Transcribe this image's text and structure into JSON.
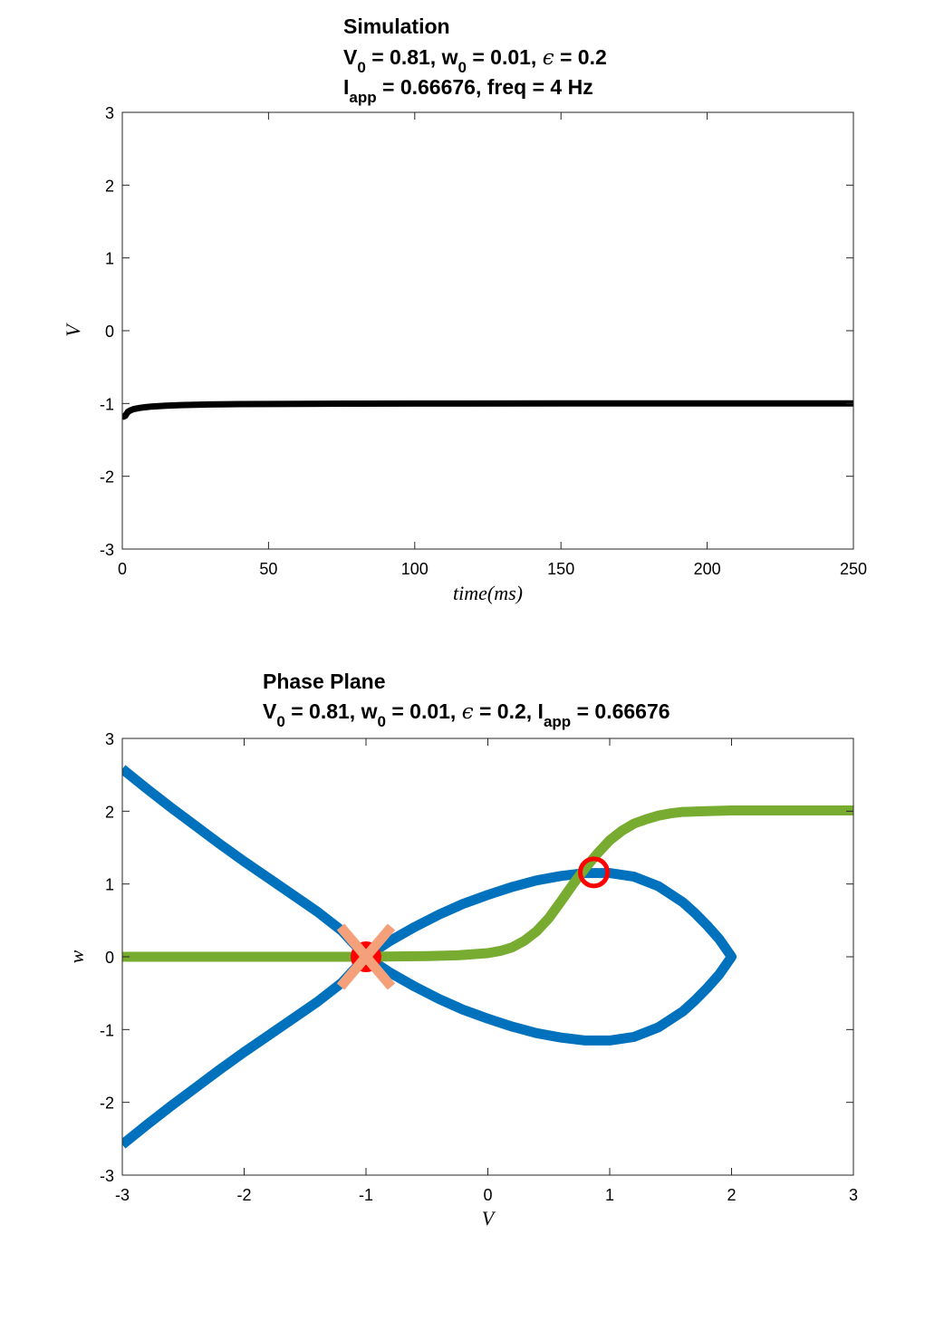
{
  "chart_data": [
    {
      "type": "line",
      "title_lines": [
        [
          {
            "t": "Simulation"
          }
        ],
        [
          {
            "t": "V"
          },
          {
            "t": "0",
            "sub": true
          },
          {
            "t": " = 0.81, w"
          },
          {
            "t": "0",
            "sub": true
          },
          {
            "t": " = 0.01, "
          },
          {
            "t": "ϵ",
            "math": true
          },
          {
            "t": " = 0.2"
          }
        ],
        [
          {
            "t": "I"
          },
          {
            "t": "app",
            "sub": true
          },
          {
            "t": " = 0.66676, freq = 4 Hz"
          }
        ]
      ],
      "xlabel": "time(ms)",
      "ylabel": "V",
      "xlim": [
        0,
        250
      ],
      "ylim": [
        -3,
        3
      ],
      "xticks": [
        "0",
        "50",
        "100",
        "150",
        "200",
        "250"
      ],
      "yticks": [
        "-3",
        "-2",
        "-1",
        "0",
        "1",
        "2",
        "3"
      ],
      "grid": false,
      "series": [
        {
          "color": "#000000",
          "x": [
            0,
            0.5,
            1,
            1.5,
            2,
            3,
            4,
            6,
            8,
            10,
            15,
            20,
            30,
            40,
            60,
            80,
            100,
            150,
            200,
            250
          ],
          "y": [
            -1.16,
            -1.18,
            -1.17,
            -1.14,
            -1.11,
            -1.09,
            -1.075,
            -1.06,
            -1.05,
            -1.042,
            -1.03,
            -1.022,
            -1.013,
            -1.008,
            -1.004,
            -1.002,
            -1.001,
            -1.0,
            -1.0,
            -1.0
          ]
        }
      ]
    },
    {
      "type": "line",
      "title_lines": [
        [
          {
            "t": "Phase Plane"
          }
        ],
        [
          {
            "t": "V"
          },
          {
            "t": "0",
            "sub": true
          },
          {
            "t": " = 0.81, w"
          },
          {
            "t": "0",
            "sub": true
          },
          {
            "t": " = 0.01, "
          },
          {
            "t": "ϵ",
            "math": true
          },
          {
            "t": " = 0.2, I"
          },
          {
            "t": "app",
            "sub": true
          },
          {
            "t": " = 0.66676"
          }
        ]
      ],
      "xlabel": "V",
      "ylabel": "w",
      "xlim": [
        -3,
        3
      ],
      "ylim": [
        -3,
        3
      ],
      "xticks": [
        "-3",
        "-2",
        "-1",
        "0",
        "1",
        "2",
        "3"
      ],
      "yticks": [
        "-3",
        "-2",
        "-1",
        "0",
        "1",
        "2",
        "3"
      ],
      "grid": false,
      "series": [
        {
          "color": "#0072BD",
          "x": [
            -3,
            -2.8,
            -2.6,
            -2.4,
            -2.2,
            -2.0,
            -1.8,
            -1.6,
            -1.4,
            -1.2,
            -1.0,
            -0.8,
            -0.6,
            -0.4,
            -0.2,
            0.0,
            0.2,
            0.4,
            0.6,
            0.8,
            1.0,
            1.2,
            1.4,
            1.6,
            1.7,
            1.8,
            1.9,
            1.95,
            2.0,
            1.95,
            1.9,
            1.8,
            1.7,
            1.6,
            1.4,
            1.2,
            1.0,
            0.8,
            0.6,
            0.4,
            0.2,
            0.0,
            -0.2,
            -0.4,
            -0.6,
            -0.8,
            -1.0,
            -1.2,
            -1.4,
            -1.6,
            -1.8,
            -2.0,
            -2.2,
            -2.4,
            -2.6,
            -2.8,
            -3.0
          ],
          "y": [
            2.58,
            2.31,
            2.05,
            1.8,
            1.55,
            1.31,
            1.08,
            0.85,
            0.62,
            0.36,
            0.0,
            0.22,
            0.41,
            0.58,
            0.73,
            0.85,
            0.96,
            1.05,
            1.11,
            1.15,
            1.15,
            1.1,
            0.97,
            0.75,
            0.6,
            0.43,
            0.24,
            0.12,
            0.0,
            -0.12,
            -0.24,
            -0.43,
            -0.6,
            -0.75,
            -0.97,
            -1.1,
            -1.15,
            -1.15,
            -1.11,
            -1.05,
            -0.96,
            -0.85,
            -0.73,
            -0.58,
            -0.41,
            -0.22,
            0.0,
            -0.36,
            -0.62,
            -0.85,
            -1.08,
            -1.31,
            -1.55,
            -1.8,
            -2.05,
            -2.31,
            -2.58
          ]
        },
        {
          "color": "#77AC30",
          "x": [
            -3.0,
            -2.0,
            -1.0,
            -0.5,
            -0.25,
            0.0,
            0.1,
            0.2,
            0.3,
            0.4,
            0.5,
            0.6,
            0.7,
            0.8,
            0.9,
            1.0,
            1.1,
            1.2,
            1.3,
            1.4,
            1.5,
            1.6,
            1.8,
            2.0,
            2.5,
            3.0
          ],
          "y": [
            0.0,
            0.0,
            0.0,
            0.01,
            0.02,
            0.05,
            0.08,
            0.13,
            0.22,
            0.35,
            0.53,
            0.76,
            1.0,
            1.22,
            1.42,
            1.6,
            1.73,
            1.83,
            1.89,
            1.94,
            1.97,
            1.99,
            2.0,
            2.01,
            2.01,
            2.01
          ]
        }
      ],
      "markers": [
        {
          "kind": "filled-circle",
          "x": -1.0,
          "y": 0.0,
          "color": "#FF0000"
        },
        {
          "kind": "x",
          "x": -1.0,
          "y": 0.0,
          "color": "#F4A07A"
        },
        {
          "kind": "open-circle",
          "x": 0.87,
          "y": 1.16,
          "color": "#FF0000"
        }
      ]
    }
  ]
}
